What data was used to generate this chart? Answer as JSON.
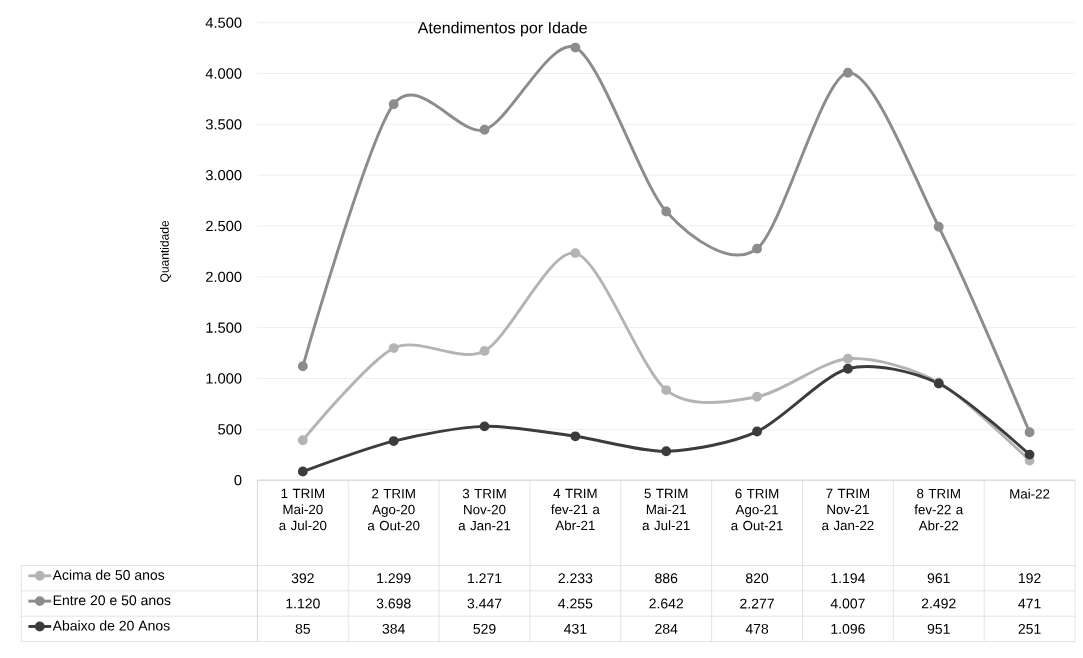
{
  "chart_data": {
    "type": "line",
    "title": "Atendimentos por Idade",
    "ylabel": "Quantidade",
    "categories": [
      "1 TRIM Mai-20 a Jul-20",
      "2 TRIM Ago-20 a Out-20",
      "3 TRIM Nov-20 a Jan-21",
      "4 TRIM fev-21 a Abr-21",
      "5 TRIM Mai-21 a Jul-21",
      "6 TRIM Ago-21 a Out-21",
      "7 TRIM Nov-21 a Jan-22",
      "8 TRIM fev-22 a Abr-22",
      "Mai-22"
    ],
    "series": [
      {
        "name": "Acima de 50 anos",
        "color": "#b4b4b4",
        "values": [
          392,
          1299,
          1271,
          2233,
          886,
          820,
          1194,
          961,
          192
        ],
        "value_labels": [
          "392",
          "1.299",
          "1.271",
          "2.233",
          "886",
          "820",
          "1.194",
          "961",
          "192"
        ]
      },
      {
        "name": "Entre 20 e 50 anos",
        "color": "#8c8c8c",
        "values": [
          1120,
          3698,
          3447,
          4255,
          2642,
          2277,
          4007,
          2492,
          471
        ],
        "value_labels": [
          "1.120",
          "3.698",
          "3.447",
          "4.255",
          "2.642",
          "2.277",
          "4.007",
          "2.492",
          "471"
        ]
      },
      {
        "name": "Abaixo de 20 Anos",
        "color": "#3c3c3c",
        "values": [
          85,
          384,
          529,
          431,
          284,
          478,
          1096,
          951,
          251
        ],
        "value_labels": [
          "85",
          "384",
          "529",
          "431",
          "284",
          "478",
          "1.096",
          "951",
          "251"
        ]
      }
    ],
    "ylim": [
      0,
      4500
    ],
    "yticks": [
      0,
      {
        "value": 500,
        "label": "500"
      },
      {
        "value": 1000,
        "label": "1.000"
      },
      {
        "value": 1500,
        "label": "1.500"
      },
      {
        "value": 2000,
        "label": "2.000"
      },
      {
        "value": 2500,
        "label": "2.500"
      },
      {
        "value": 3000,
        "label": "3.000"
      },
      {
        "value": 3500,
        "label": "3.500"
      },
      {
        "value": 4000,
        "label": "4.000"
      },
      {
        "value": 4500,
        "label": "4.500"
      }
    ],
    "grid": "y",
    "legend": "bottom",
    "marker": "circle",
    "line_style": "solid"
  }
}
